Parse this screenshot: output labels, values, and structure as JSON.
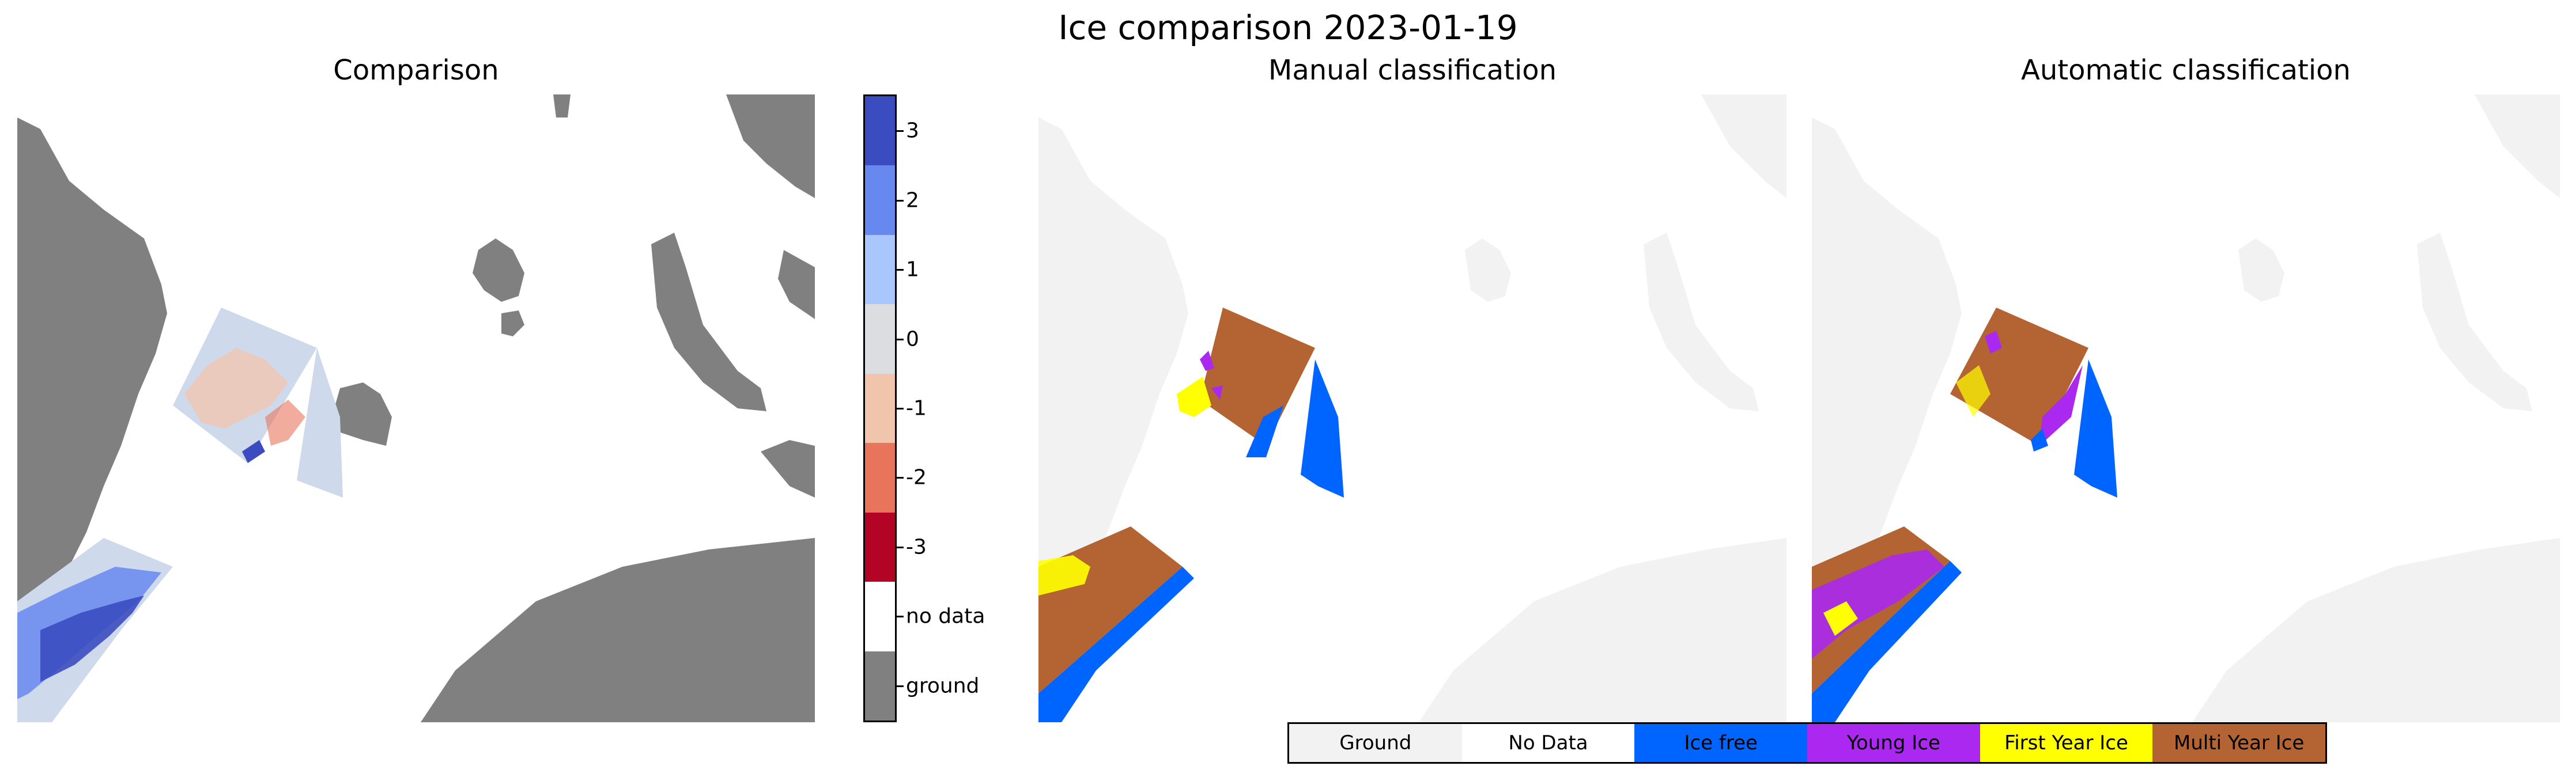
{
  "figure": {
    "suptitle": "Ice comparison 2023-01-19",
    "panel_titles": [
      "Comparison",
      "Manual classification",
      "Automatic classification"
    ]
  },
  "colors": {
    "land": "#808080",
    "land_faint": "#f2f2f2",
    "no_data": "#ffffff",
    "comparison_swath_base": "#cfd9ec"
  },
  "chart_data": [
    {
      "type": "heatmap",
      "title": "Comparison",
      "colorbar": {
        "labels": [
          "3",
          "2",
          "1",
          "0",
          "-1",
          "-2",
          "-3",
          "no data",
          "ground"
        ],
        "colors": [
          "#3b4cc0",
          "#6788ee",
          "#aac7fd",
          "#dcdde1",
          "#f1c4ac",
          "#e7745b",
          "#b40426",
          "#ffffff",
          "#808080"
        ]
      }
    },
    {
      "type": "heatmap",
      "title": "Manual classification"
    },
    {
      "type": "heatmap",
      "title": "Automatic classification"
    }
  ],
  "legend": {
    "items": [
      {
        "label": "Ground",
        "color": "#f2f2f2"
      },
      {
        "label": "No Data",
        "color": "#ffffff"
      },
      {
        "label": "Ice free",
        "color": "#0064ff"
      },
      {
        "label": "Young Ice",
        "color": "#aa28f0"
      },
      {
        "label": "First Year Ice",
        "color": "#ffff00"
      },
      {
        "label": "Multi Year Ice",
        "color": "#b46432"
      }
    ]
  }
}
